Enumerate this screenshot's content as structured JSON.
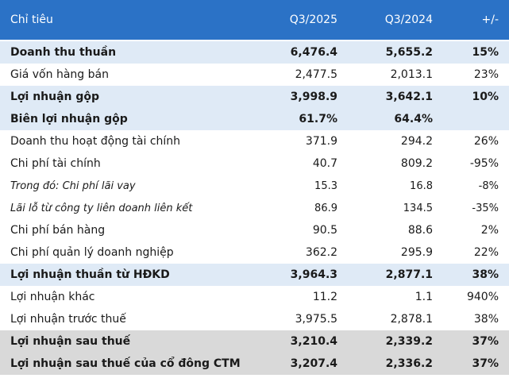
{
  "table": {
    "header": [
      "Chỉ tiêu",
      "Q3/2025",
      "Q3/2024",
      "+/-"
    ],
    "rows": [
      [
        "Doanh thu thuần",
        "6,476.4",
        "5,655.2",
        "15%"
      ],
      [
        "Giá vốn hàng bán",
        "2,477.5",
        "2,013.1",
        "23%"
      ],
      [
        "Lợi nhuận gộp",
        "3,998.9",
        "3,642.1",
        "10%"
      ],
      [
        "Biên lợi nhuận gộp",
        "61.7%",
        "64.4%"
      ],
      [
        "Doanh thu hoạt động tài chính",
        "371.9",
        "294.2",
        "26%"
      ],
      [
        "Chi phí tài chính",
        "40.7",
        "809.2",
        "-95%"
      ],
      [
        "Trong đó: Chi phí lãi vay",
        "15.3",
        "16.8",
        "-8%"
      ],
      [
        "Lãi lỗ từ công ty liên doanh liên kết",
        "86.9",
        "134.5",
        "-35%"
      ],
      [
        "Chi phí bán hàng",
        "90.5",
        "88.6",
        "2%"
      ],
      [
        "Chi phí quản lý doanh nghiệp",
        "362.2",
        "295.9",
        "22%"
      ],
      [
        "Lợi nhuận thuần từ HĐKD",
        "3,964.3",
        "2,877.1",
        "38%"
      ],
      [
        "Lợi nhuận khác",
        "11.2",
        "1.1",
        "940%"
      ],
      [
        "Lợi nhuận trước thuế",
        "3,975.5",
        "2,878.1",
        "38%"
      ],
      [
        "Lợi nhuận sau thuế",
        "3,210.4",
        "2,339.2",
        "37%"
      ],
      [
        "Lợi nhuận sau thuế của cổ đông CTM",
        "3,207.4",
        "2,336.2",
        "37%"
      ]
    ]
  }
}
